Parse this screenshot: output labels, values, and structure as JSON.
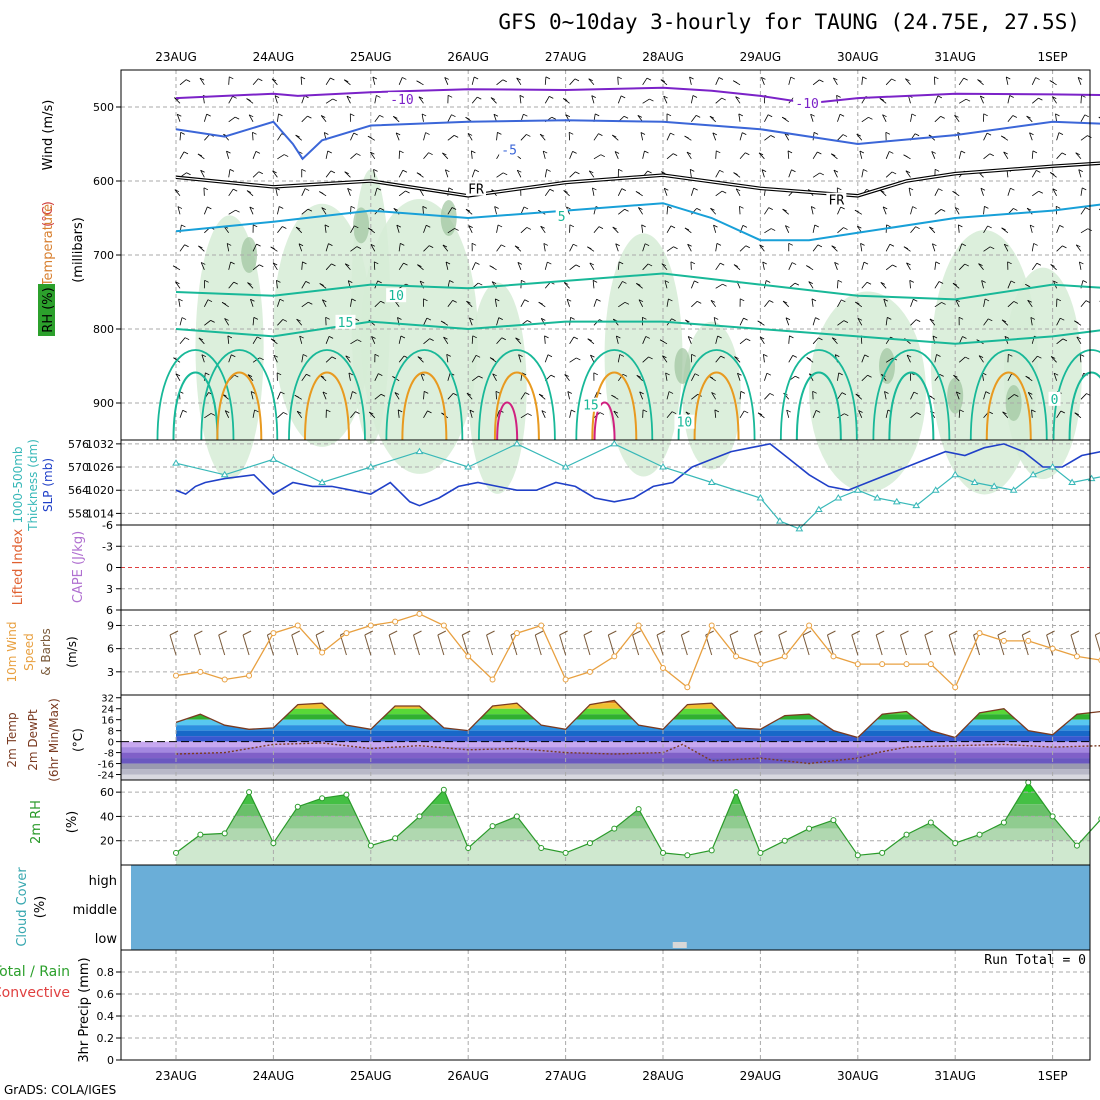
{
  "title": "GFS 0~10day 3-hourly for TAUNG (24.75E, 27.5S)",
  "credit": "GrADS: COLA/IGES",
  "colors": {
    "rh_fill": "#d6ecd6",
    "temp_contour_cold": "#3b66d8",
    "temp_contour_cool": "#18a0d8",
    "temp_contour_warm": "#18b898",
    "temp_contour_hot": "#e89a20",
    "thickness_line": "#2040c8",
    "slp_line": "#38b8b8",
    "wind_speed_line": "#e8a040",
    "rh2m_line": "#2a9a2a",
    "cloud_fill": "#6aaed8",
    "lifted_index_zero": "#e04040"
  },
  "chart_data": {
    "type": "line",
    "x_ticks": [
      "23AUG",
      "24AUG",
      "25AUG",
      "26AUG",
      "27AUG",
      "28AUG",
      "29AUG",
      "30AUG",
      "31AUG",
      "1SEP"
    ],
    "panels": [
      {
        "id": "upper_air",
        "ylabel_parts": [
          "RH (%)",
          "Temperature",
          "(°C)",
          "Wind (m/s)"
        ],
        "ylabel_right": "(millibars)",
        "y_ticks": [
          500,
          600,
          700,
          800,
          900
        ],
        "ylim": [
          450,
          950
        ],
        "contour_labels": [
          {
            "text": "-10",
            "x": 2.32,
            "p": 492
          },
          {
            "text": "-10",
            "x": 6.48,
            "p": 497
          },
          {
            "text": "-5",
            "x": 3.42,
            "p": 560
          },
          {
            "text": "FR",
            "x": 3.08,
            "p": 613
          },
          {
            "text": "FR",
            "x": 6.78,
            "p": 628
          },
          {
            "text": "5",
            "x": 3.96,
            "p": 650
          },
          {
            "text": "10",
            "x": 2.26,
            "p": 757
          },
          {
            "text": "15",
            "x": 1.74,
            "p": 793
          },
          {
            "text": "15",
            "x": 4.26,
            "p": 905
          },
          {
            "text": "10",
            "x": 5.22,
            "p": 928
          },
          {
            "text": "0",
            "x": 9.02,
            "p": 897
          }
        ],
        "series": [
          {
            "x": [
              0,
              1,
              1.25,
              2,
              3,
              4,
              5,
              5.5,
              6,
              6.5,
              7,
              8,
              9,
              9.6
            ],
            "values": [
              488,
              482,
              485,
              480,
              476,
              477,
              474,
              478,
              485,
              495,
              488,
              482,
              483,
              484
            ]
          },
          {
            "x": [
              0,
              0.5,
              1,
              1.2,
              1.3,
              1.5,
              2,
              3,
              4,
              5,
              6,
              7,
              8,
              9,
              9.6
            ],
            "values": [
              530,
              540,
              520,
              550,
              570,
              545,
              525,
              520,
              518,
              520,
              530,
              550,
              538,
              520,
              523
            ]
          },
          {
            "x": [
              0,
              1,
              2,
              3,
              4,
              5,
              6,
              6.5,
              7,
              7.5,
              8,
              9,
              9.6
            ],
            "values": [
              595,
              608,
              600,
              620,
              602,
              592,
              610,
              615,
              620,
              600,
              590,
              580,
              575
            ]
          },
          {
            "x": [
              0,
              1,
              2,
              3,
              4,
              5,
              5.5,
              6,
              6.5,
              7,
              8,
              9,
              9.6
            ],
            "values": [
              668,
              655,
              640,
              650,
              640,
              630,
              650,
              680,
              680,
              670,
              650,
              640,
              630
            ]
          },
          {
            "x": [
              0,
              1,
              2,
              3,
              4,
              5,
              6,
              7,
              8,
              9,
              9.6
            ],
            "values": [
              750,
              755,
              740,
              745,
              735,
              725,
              740,
              755,
              760,
              740,
              745
            ]
          },
          {
            "x": [
              0,
              1,
              2,
              3,
              4,
              5,
              6,
              7,
              8,
              9,
              9.6
            ],
            "values": [
              800,
              810,
              790,
              800,
              790,
              790,
              800,
              810,
              820,
              810,
              800
            ]
          }
        ]
      },
      {
        "id": "thickness_slp",
        "ylabel_parts": [
          "1000-500mb",
          "Thickness (dm)",
          "SLP (mb)"
        ],
        "y_ticks_left": [
          558,
          564,
          570,
          576
        ],
        "y_ticks_right": [
          1014,
          1020,
          1026,
          1032
        ],
        "ylim": [
          555,
          577
        ],
        "series": [
          {
            "name": "Thickness",
            "x": [
              0,
              0.1,
              0.2,
              0.3,
              0.5,
              0.8,
              1.0,
              1.2,
              1.4,
              1.6,
              1.8,
              2.0,
              2.2,
              2.4,
              2.5,
              2.7,
              2.9,
              3.1,
              3.3,
              3.5,
              3.7,
              3.9,
              4.1,
              4.3,
              4.5,
              4.7,
              4.9,
              5.1,
              5.3,
              5.5,
              5.7,
              5.9,
              6.1,
              6.3,
              6.5,
              6.7,
              6.9,
              7.1,
              7.3,
              7.5,
              7.7,
              7.9,
              8.1,
              8.3,
              8.5,
              8.7,
              8.9,
              9.1,
              9.3,
              9.5,
              9.6
            ],
            "values": [
              564,
              563,
              565,
              566,
              567,
              568,
              563,
              566,
              565,
              565,
              564,
              563,
              566,
              561,
              560,
              562,
              565,
              566,
              565,
              564,
              564,
              566,
              565,
              562,
              561,
              562,
              565,
              566,
              570,
              572,
              574,
              575,
              576,
              572,
              568,
              565,
              564,
              566,
              568,
              570,
              572,
              574,
              573,
              575,
              576,
              574,
              570,
              570,
              573,
              574,
              574
            ]
          },
          {
            "name": "SLP",
            "x": [
              0,
              0.5,
              1.0,
              1.5,
              2.0,
              2.5,
              3.0,
              3.5,
              4.0,
              4.5,
              5.0,
              5.5,
              6.0,
              6.2,
              6.4,
              6.6,
              6.8,
              7.0,
              7.2,
              7.4,
              7.6,
              7.8,
              8.0,
              8.2,
              8.4,
              8.6,
              8.8,
              9.0,
              9.2,
              9.4,
              9.6
            ],
            "values": [
              1027,
              1024,
              1028,
              1022,
              1026,
              1030,
              1026,
              1032,
              1026,
              1032,
              1026,
              1022,
              1018,
              1012,
              1010,
              1015,
              1018,
              1020,
              1018,
              1017,
              1016,
              1020,
              1024,
              1022,
              1021,
              1020,
              1024,
              1026,
              1022,
              1023,
              1024
            ]
          }
        ]
      },
      {
        "id": "cape_li",
        "ylabel_parts": [
          "CAPE (J/kg)",
          "Lifted Index"
        ],
        "y_ticks": [
          -6,
          -3,
          0,
          3,
          6
        ],
        "y_tick_labels": [
          "6",
          "3",
          "0",
          "-3",
          "-6"
        ],
        "ylim": [
          -6,
          6
        ]
      },
      {
        "id": "wind10m",
        "ylabel_parts": [
          "10m Wind",
          "Speed",
          "& Barbs",
          "(m/s)"
        ],
        "y_ticks": [
          3,
          6,
          9
        ],
        "ylim": [
          0,
          11
        ],
        "series": [
          {
            "name": "Speed",
            "x": [
              0,
              0.25,
              0.5,
              0.75,
              1.0,
              1.25,
              1.5,
              1.75,
              2.0,
              2.25,
              2.5,
              2.75,
              3.0,
              3.25,
              3.5,
              3.75,
              4.0,
              4.25,
              4.5,
              4.75,
              5.0,
              5.25,
              5.5,
              5.75,
              6.0,
              6.25,
              6.5,
              6.75,
              7.0,
              7.25,
              7.5,
              7.75,
              8.0,
              8.25,
              8.5,
              8.75,
              9.0,
              9.25,
              9.5,
              9.6
            ],
            "values": [
              2.5,
              3,
              2,
              2.5,
              8,
              9,
              5.5,
              8,
              9,
              9.5,
              10.5,
              9,
              5,
              2,
              8,
              9,
              2,
              3,
              5,
              9,
              3.5,
              1,
              9,
              5,
              4,
              5,
              9,
              5,
              4,
              4,
              4,
              4,
              1,
              8,
              7,
              7,
              6,
              5,
              4.5,
              5
            ]
          }
        ]
      },
      {
        "id": "t2m",
        "ylabel_parts": [
          "2m Temp",
          "2m DewPt",
          "(6hr Min/Max)",
          "(°C)"
        ],
        "y_ticks": [
          32,
          24,
          16,
          8,
          0,
          -8,
          -16,
          -24
        ],
        "ylim": [
          -28,
          34
        ],
        "series": [
          {
            "name": "Temp",
            "x": [
              0,
              0.25,
              0.5,
              0.75,
              1.0,
              1.25,
              1.5,
              1.75,
              2.0,
              2.25,
              2.5,
              2.75,
              3.0,
              3.25,
              3.5,
              3.75,
              4.0,
              4.25,
              4.5,
              4.75,
              5.0,
              5.25,
              5.5,
              5.75,
              6.0,
              6.25,
              6.5,
              6.75,
              7.0,
              7.25,
              7.5,
              7.75,
              8.0,
              8.25,
              8.5,
              8.75,
              9.0,
              9.25,
              9.5,
              9.6
            ],
            "values": [
              14,
              20,
              12,
              9,
              10,
              27,
              28,
              12,
              9,
              26,
              26,
              10,
              8,
              26,
              28,
              12,
              9,
              27,
              30,
              12,
              9,
              27,
              28,
              10,
              9,
              19,
              20,
              8,
              3,
              20,
              22,
              8,
              3,
              21,
              24,
              8,
              5,
              20,
              22,
              10
            ]
          },
          {
            "name": "DewPt",
            "x": [
              0,
              0.5,
              1.0,
              1.5,
              2.0,
              2.5,
              3.0,
              3.5,
              4.0,
              4.5,
              5.0,
              5.2,
              5.5,
              6.0,
              6.5,
              7.0,
              7.2,
              7.5,
              8.0,
              8.5,
              9.0,
              9.5,
              9.6
            ],
            "values": [
              -9,
              -8,
              -2,
              -1,
              -5,
              -3,
              -6,
              -5,
              -8,
              -9,
              -8,
              -2,
              -14,
              -12,
              -16,
              -12,
              -8,
              -4,
              -3,
              -2,
              -4,
              -3,
              -3
            ]
          }
        ]
      },
      {
        "id": "rh2m",
        "ylabel_parts": [
          "2m RH",
          "(%)"
        ],
        "y_ticks": [
          20,
          40,
          60
        ],
        "ylim": [
          0,
          70
        ],
        "series": [
          {
            "name": "RH",
            "x": [
              0,
              0.25,
              0.5,
              0.75,
              1.0,
              1.25,
              1.5,
              1.75,
              2.0,
              2.25,
              2.5,
              2.75,
              3.0,
              3.25,
              3.5,
              3.75,
              4.0,
              4.25,
              4.5,
              4.75,
              5.0,
              5.25,
              5.5,
              5.75,
              6.0,
              6.25,
              6.5,
              6.75,
              7.0,
              7.25,
              7.5,
              7.75,
              8.0,
              8.25,
              8.5,
              8.75,
              9.0,
              9.25,
              9.5,
              9.6
            ],
            "values": [
              10,
              25,
              26,
              60,
              18,
              48,
              55,
              58,
              16,
              22,
              40,
              62,
              14,
              32,
              40,
              14,
              10,
              18,
              30,
              46,
              10,
              8,
              12,
              60,
              10,
              20,
              30,
              37,
              8,
              10,
              25,
              35,
              18,
              25,
              35,
              68,
              40,
              16,
              38,
              45
            ]
          }
        ]
      },
      {
        "id": "cloud",
        "ylabel_parts": [
          "Cloud Cover",
          "(%)"
        ],
        "levels": [
          "high",
          "middle",
          "low"
        ]
      },
      {
        "id": "precip",
        "ylabel_parts": [
          "Total / Rain",
          "Convective",
          "3hr Precip (mm)"
        ],
        "y_ticks": [
          0,
          0.2,
          0.4,
          0.6,
          0.8
        ],
        "ylim": [
          0,
          1
        ],
        "annotation": "Run Total = 0",
        "series": []
      }
    ]
  }
}
